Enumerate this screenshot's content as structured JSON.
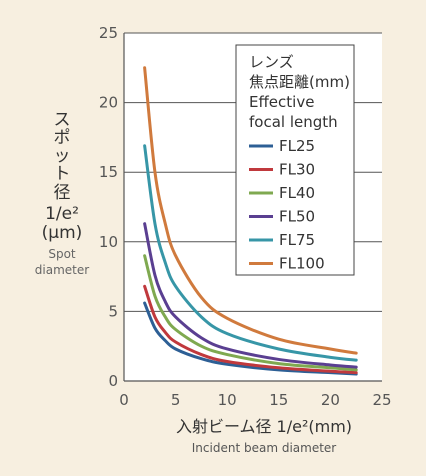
{
  "chart_data": {
    "type": "line",
    "ylabel_lines": [
      "ス",
      "ポ",
      "ッ",
      "ト",
      "径",
      "1/e²",
      "(μm)"
    ],
    "ylabel_en_lines": [
      "Spot",
      "diameter"
    ],
    "xlabel": "入射ビーム径 1/e²(mm)",
    "xlabel_en": "Incident beam diameter",
    "xlim": [
      0,
      25
    ],
    "ylim": [
      0,
      25
    ],
    "x_ticks": [
      "0",
      "5",
      "10",
      "15",
      "20",
      "25"
    ],
    "y_ticks": [
      "0",
      "5",
      "10",
      "15",
      "20",
      "25"
    ],
    "grid": true,
    "legend_position": "top-right",
    "legend_title_lines": [
      "レンズ",
      "焦点距離(mm)",
      "Effective",
      "focal length"
    ],
    "series": [
      {
        "name": "FL25",
        "color": "#2d5f95",
        "x": [
          2,
          3,
          4,
          5,
          7.5,
          10,
          15,
          20,
          22.5
        ],
        "values": [
          5.6,
          3.8,
          2.9,
          2.3,
          1.6,
          1.2,
          0.8,
          0.6,
          0.5
        ]
      },
      {
        "name": "FL30",
        "color": "#c0393d",
        "x": [
          2,
          3,
          4,
          5,
          7.5,
          10,
          15,
          20,
          22.5
        ],
        "values": [
          6.8,
          4.6,
          3.5,
          2.8,
          1.9,
          1.4,
          0.95,
          0.7,
          0.6
        ]
      },
      {
        "name": "FL40",
        "color": "#7fa950",
        "x": [
          2,
          3,
          4,
          5,
          7.5,
          10,
          15,
          20,
          22.5
        ],
        "values": [
          9.0,
          6.1,
          4.6,
          3.7,
          2.5,
          1.9,
          1.25,
          0.95,
          0.8
        ]
      },
      {
        "name": "FL50",
        "color": "#5a3f91",
        "x": [
          2,
          3,
          4,
          5,
          7.5,
          10,
          15,
          20,
          22.5
        ],
        "values": [
          11.3,
          7.6,
          5.7,
          4.6,
          3.1,
          2.3,
          1.55,
          1.15,
          1.0
        ]
      },
      {
        "name": "FL75",
        "color": "#3796a7",
        "x": [
          2,
          3,
          4,
          5,
          7.5,
          10,
          15,
          20,
          22.5
        ],
        "values": [
          16.9,
          11.3,
          8.5,
          6.8,
          4.6,
          3.4,
          2.3,
          1.7,
          1.5
        ]
      },
      {
        "name": "FL100",
        "color": "#d07a3d",
        "x": [
          2,
          3,
          4,
          5,
          7.5,
          10,
          15,
          20,
          22.5
        ],
        "values": [
          22.5,
          15.0,
          11.3,
          9.0,
          6.0,
          4.5,
          3.0,
          2.3,
          2.0
        ]
      }
    ]
  }
}
